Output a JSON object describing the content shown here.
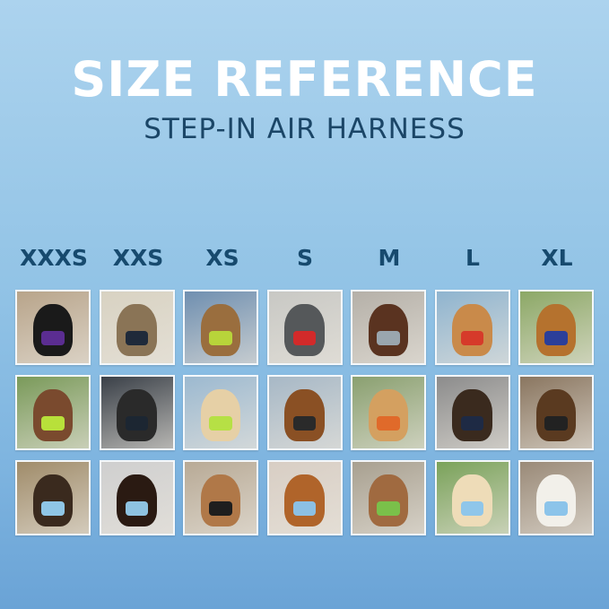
{
  "header": {
    "title": "SIZE REFERENCE",
    "subtitle": "STEP-IN AIR HARNESS"
  },
  "colors": {
    "title": "#ffffff",
    "subtitle": "#1b4667",
    "size_label": "#174a6e"
  },
  "sizes": [
    "XXXS",
    "XXS",
    "XS",
    "S",
    "M",
    "L",
    "XL"
  ],
  "photos": [
    [
      {
        "subject": "black kitten",
        "harness": "#5b2d91",
        "bg": "#b8a48a",
        "fur": "#1a1a1a"
      },
      {
        "subject": "tabby cat",
        "harness": "#1f2a3a",
        "bg": "#d8d2c2",
        "fur": "#8a7456"
      },
      {
        "subject": "bengal cat in car",
        "harness": "#b8d43a",
        "bg": "#6f8fb0",
        "fur": "#9a6e3e"
      },
      {
        "subject": "french bulldog",
        "harness": "#d22a2a",
        "bg": "#c8c8c4",
        "fur": "#55585a"
      },
      {
        "subject": "dachshund",
        "harness": "#9aa6ae",
        "bg": "#b5b0a8",
        "fur": "#5a3320"
      },
      {
        "subject": "shiba inu",
        "harness": "#d63a2a",
        "bg": "#8fb4cf",
        "fur": "#c98a4a"
      },
      {
        "subject": "golden retriever",
        "harness": "#2b3f9a",
        "bg": "#8ca866",
        "fur": "#b5722e"
      }
    ],
    [
      {
        "subject": "doodle puppy",
        "harness": "#b8e03a",
        "bg": "#7a9a5a",
        "fur": "#7a4a2e"
      },
      {
        "subject": "black puppy",
        "harness": "#1c2632",
        "bg": "#3a4048",
        "fur": "#2a2a2a"
      },
      {
        "subject": "cream puppy on boat",
        "harness": "#b6e045",
        "bg": "#9cb9d0",
        "fur": "#e6d0a6"
      },
      {
        "subject": "dachshund on pier",
        "harness": "#2a2a2a",
        "bg": "#a7b8c6",
        "fur": "#8a5024"
      },
      {
        "subject": "golden puppy",
        "harness": "#e06a2a",
        "bg": "#8aa070",
        "fur": "#d4a060"
      },
      {
        "subject": "shepherd in tunnel",
        "harness": "#1e2a44",
        "bg": "#8c8c8c",
        "fur": "#3a2a1e"
      },
      {
        "subject": "shepherd mix",
        "harness": "#222",
        "bg": "#8a7660",
        "fur": "#5a3a20"
      }
    ],
    [
      {
        "subject": "yorkie",
        "harness": "#8fc6e6",
        "bg": "#a08c6a",
        "fur": "#3a2a1e"
      },
      {
        "subject": "cavalier puppy",
        "harness": "#8ec2e0",
        "bg": "#cfcfcf",
        "fur": "#2a1a12"
      },
      {
        "subject": "poodle puppy",
        "harness": "#1e1e1e",
        "bg": "#b8aa96",
        "fur": "#b07848"
      },
      {
        "subject": "dachshund",
        "harness": "#8cc0e4",
        "bg": "#d8cec4",
        "fur": "#b0642a"
      },
      {
        "subject": "doodle",
        "harness": "#7ac04a",
        "bg": "#a8a090",
        "fur": "#a06a40"
      },
      {
        "subject": "golden puppy",
        "harness": "#8fc6ea",
        "bg": "#7aa25a",
        "fur": "#eedcb8"
      },
      {
        "subject": "white shepherd",
        "harness": "#8cc4ea",
        "bg": "#9a8a78",
        "fur": "#f2f0ea"
      }
    ]
  ]
}
